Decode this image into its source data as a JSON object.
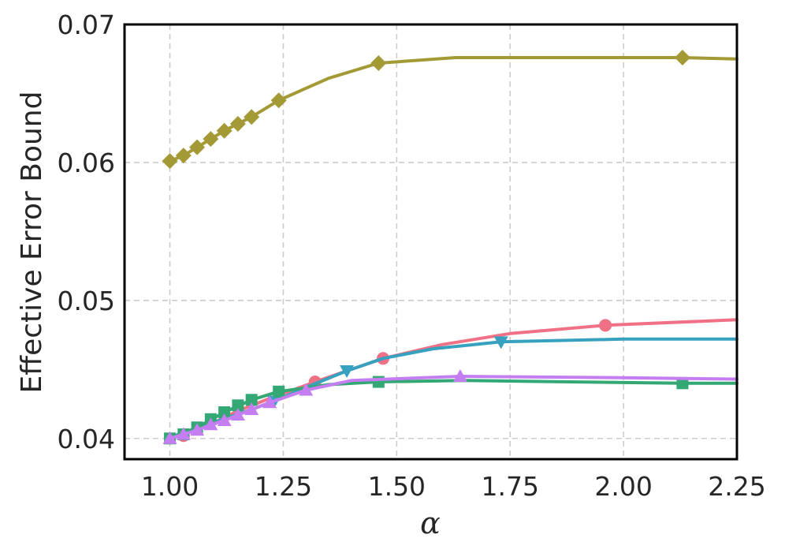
{
  "chart_data": {
    "type": "line",
    "title": "",
    "xlabel": "α",
    "ylabel": "Effective Error Bound",
    "xlim": [
      0.9,
      2.25
    ],
    "ylim": [
      0.0385,
      0.07
    ],
    "xticks": [
      "1.00",
      "1.25",
      "1.50",
      "1.75",
      "2.00",
      "2.25"
    ],
    "yticks": [
      "0.04",
      "0.05",
      "0.06",
      "0.07"
    ],
    "grid": true,
    "legend": "none",
    "series": [
      {
        "color": "#a39a35",
        "marker": "diamond",
        "line": [
          [
            1.0,
            0.0601
          ],
          [
            1.03,
            0.0605
          ],
          [
            1.06,
            0.0611
          ],
          [
            1.09,
            0.0617
          ],
          [
            1.12,
            0.0623
          ],
          [
            1.15,
            0.0628
          ],
          [
            1.18,
            0.0633
          ],
          [
            1.24,
            0.0645
          ],
          [
            1.35,
            0.0661
          ],
          [
            1.46,
            0.0672
          ],
          [
            1.63,
            0.0676
          ],
          [
            1.85,
            0.0676
          ],
          [
            2.13,
            0.0676
          ],
          [
            2.25,
            0.0675
          ]
        ],
        "markers": [
          [
            1.0,
            0.0601
          ],
          [
            1.03,
            0.0605
          ],
          [
            1.06,
            0.0611
          ],
          [
            1.09,
            0.0617
          ],
          [
            1.12,
            0.0623
          ],
          [
            1.15,
            0.0628
          ],
          [
            1.18,
            0.0633
          ],
          [
            1.24,
            0.0645
          ],
          [
            1.46,
            0.0672
          ],
          [
            2.13,
            0.0676
          ]
        ]
      },
      {
        "color": "#f07185",
        "marker": "circle",
        "line": [
          [
            1.0,
            0.0401
          ],
          [
            1.05,
            0.0406
          ],
          [
            1.1,
            0.0412
          ],
          [
            1.15,
            0.042
          ],
          [
            1.22,
            0.0429
          ],
          [
            1.32,
            0.0441
          ],
          [
            1.47,
            0.0458
          ],
          [
            1.6,
            0.0468
          ],
          [
            1.75,
            0.0476
          ],
          [
            1.96,
            0.0482
          ],
          [
            2.25,
            0.0486
          ]
        ],
        "markers": [
          [
            1.03,
            0.0402
          ],
          [
            1.32,
            0.0441
          ],
          [
            1.47,
            0.0458
          ],
          [
            1.96,
            0.0482
          ]
        ]
      },
      {
        "color": "#36a2c0",
        "marker": "triangle-down",
        "line": [
          [
            1.0,
            0.0401
          ],
          [
            1.05,
            0.0406
          ],
          [
            1.1,
            0.0412
          ],
          [
            1.18,
            0.0421
          ],
          [
            1.23,
            0.0427
          ],
          [
            1.3,
            0.0437
          ],
          [
            1.39,
            0.0449
          ],
          [
            1.47,
            0.0458
          ],
          [
            1.58,
            0.0465
          ],
          [
            1.73,
            0.047
          ],
          [
            2.0,
            0.0472
          ],
          [
            2.25,
            0.0472
          ]
        ],
        "markers": [
          [
            1.23,
            0.0427
          ],
          [
            1.39,
            0.0449
          ],
          [
            1.73,
            0.047
          ]
        ]
      },
      {
        "color": "#33a874",
        "marker": "square",
        "line": [
          [
            1.0,
            0.04
          ],
          [
            1.06,
            0.0408
          ],
          [
            1.12,
            0.0419
          ],
          [
            1.18,
            0.0428
          ],
          [
            1.24,
            0.0434
          ],
          [
            1.35,
            0.0439
          ],
          [
            1.46,
            0.0441
          ],
          [
            1.65,
            0.0442
          ],
          [
            2.13,
            0.044
          ],
          [
            2.25,
            0.044
          ]
        ],
        "markers": [
          [
            1.0,
            0.04
          ],
          [
            1.03,
            0.0403
          ],
          [
            1.06,
            0.0408
          ],
          [
            1.09,
            0.0414
          ],
          [
            1.12,
            0.0419
          ],
          [
            1.15,
            0.0424
          ],
          [
            1.18,
            0.0428
          ],
          [
            1.24,
            0.0434
          ],
          [
            1.46,
            0.0441
          ],
          [
            2.13,
            0.044
          ]
        ]
      },
      {
        "color": "#c57ef2",
        "marker": "triangle-up",
        "line": [
          [
            1.0,
            0.04
          ],
          [
            1.03,
            0.0403
          ],
          [
            1.06,
            0.0406
          ],
          [
            1.09,
            0.041
          ],
          [
            1.12,
            0.0413
          ],
          [
            1.15,
            0.0417
          ],
          [
            1.18,
            0.0421
          ],
          [
            1.22,
            0.0426
          ],
          [
            1.3,
            0.0435
          ],
          [
            1.4,
            0.0442
          ],
          [
            1.64,
            0.0445
          ],
          [
            2.0,
            0.0444
          ],
          [
            2.25,
            0.0443
          ]
        ],
        "markers": [
          [
            1.0,
            0.04
          ],
          [
            1.03,
            0.0403
          ],
          [
            1.06,
            0.0406
          ],
          [
            1.09,
            0.041
          ],
          [
            1.12,
            0.0413
          ],
          [
            1.15,
            0.0417
          ],
          [
            1.18,
            0.0421
          ],
          [
            1.22,
            0.0426
          ],
          [
            1.3,
            0.0435
          ],
          [
            1.64,
            0.0445
          ]
        ]
      }
    ]
  }
}
